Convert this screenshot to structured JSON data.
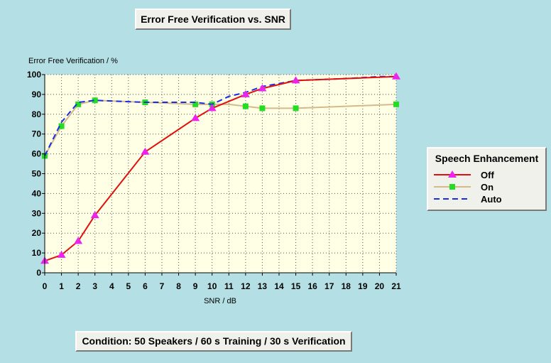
{
  "title": "Error Free Verification vs. SNR",
  "condition": "Condition: 50 Speakers / 60 s Training / 30 s Verification",
  "colors": {
    "background": "#b4dfe4",
    "plot_area": "#ffffe6",
    "off": "#e01010",
    "on": "#d6b98a",
    "auto": "#1a2ee0",
    "off_marker": "#ee22ee",
    "on_marker": "#22dd22"
  },
  "chart_data": {
    "type": "line",
    "title": "Error Free Verification vs. SNR",
    "xlabel": "SNR / dB",
    "ylabel": "Error Free Verification / %",
    "xlim": [
      0,
      21
    ],
    "ylim": [
      0,
      100
    ],
    "x_ticks": [
      0,
      1,
      2,
      3,
      4,
      5,
      6,
      7,
      8,
      9,
      10,
      11,
      12,
      13,
      14,
      15,
      16,
      17,
      18,
      19,
      20,
      21
    ],
    "y_ticks": [
      0,
      10,
      20,
      30,
      40,
      50,
      60,
      70,
      80,
      90,
      100
    ],
    "grid": true,
    "legend": {
      "title": "Speech Enhancement",
      "position": "right"
    },
    "series": [
      {
        "name": "Off",
        "marker": "triangle",
        "line": "solid",
        "x": [
          0,
          1,
          2,
          3,
          6,
          9,
          10,
          12,
          13,
          15,
          21
        ],
        "y": [
          6,
          9,
          16,
          29,
          61,
          78,
          83,
          90,
          93,
          97,
          99
        ],
        "markers_at": [
          0,
          1,
          2,
          3,
          6,
          9,
          10,
          12,
          13,
          15,
          21
        ]
      },
      {
        "name": "On",
        "marker": "square",
        "line": "solid",
        "x": [
          0,
          1,
          2,
          3,
          6,
          9,
          10,
          11,
          12,
          13,
          15,
          18,
          21
        ],
        "y": [
          59,
          74,
          85,
          87,
          86,
          85,
          85,
          85,
          84,
          83,
          83,
          84,
          85
        ],
        "markers_at": [
          0,
          1,
          2,
          3,
          6,
          9,
          10,
          12,
          13,
          15,
          21
        ]
      },
      {
        "name": "Auto",
        "marker": "none",
        "line": "dashed",
        "x": [
          0,
          1,
          2,
          3,
          6,
          9,
          10,
          11,
          12,
          13,
          15,
          18,
          20,
          21
        ],
        "y": [
          59,
          76,
          86,
          87,
          86,
          86,
          85,
          89,
          91,
          94,
          97,
          98,
          99,
          99
        ],
        "markers_at": []
      }
    ]
  }
}
